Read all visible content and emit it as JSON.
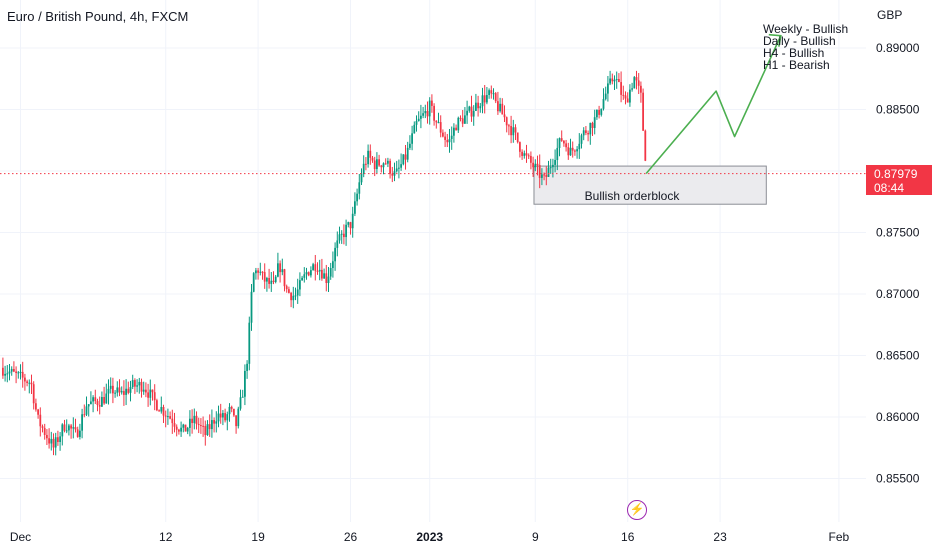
{
  "chart_data": {
    "type": "candlestick",
    "title": "Euro / British Pound, 4h, FXCM",
    "currency": "GBP",
    "ylim": [
      0.8525,
      0.8925
    ],
    "y_ticks": [
      "0.89000",
      "0.88500",
      "0.88000",
      "0.87500",
      "0.87000",
      "0.86500",
      "0.86000",
      "0.85500"
    ],
    "y_tick_values": [
      0.89,
      0.885,
      0.88,
      0.875,
      0.87,
      0.865,
      0.86,
      0.855
    ],
    "x_ticks": [
      {
        "label": "Dec",
        "day": 0
      },
      {
        "label": "12",
        "day": 11
      },
      {
        "label": "19",
        "day": 18
      },
      {
        "label": "26",
        "day": 25
      },
      {
        "label": "2023",
        "day": 31
      },
      {
        "label": "9",
        "day": 39
      },
      {
        "label": "16",
        "day": 46
      },
      {
        "label": "23",
        "day": 53
      },
      {
        "label": "Feb",
        "day": 62
      }
    ],
    "grid": true,
    "last_price": "0.87979",
    "countdown": "08:44",
    "orderblock": {
      "label": "Bullish orderblock",
      "top": 0.8804,
      "bottom": 0.8773,
      "day_start": 38.9,
      "day_end": 56.5
    },
    "projection": {
      "points": [
        [
          47.4,
          0.8798
        ],
        [
          52.7,
          0.8865
        ],
        [
          54.1,
          0.8828
        ],
        [
          57.6,
          0.891
        ]
      ],
      "color": "#4caf50"
    },
    "bias_notes": [
      "Weekly - Bullish",
      "Daily - Bullish",
      "H4 - Bullish",
      "H1 - Bearish"
    ],
    "up_color": "#089981",
    "down_color": "#f23645",
    "anchors": [
      [
        -1.5,
        0.864
      ],
      [
        0,
        0.8632
      ],
      [
        0.8,
        0.8628
      ],
      [
        1.3,
        0.8598
      ],
      [
        2.5,
        0.8575
      ],
      [
        3.4,
        0.8595
      ],
      [
        4.2,
        0.8585
      ],
      [
        5.0,
        0.861
      ],
      [
        6.2,
        0.8614
      ],
      [
        7.0,
        0.8622
      ],
      [
        7.6,
        0.8618
      ],
      [
        8.4,
        0.8625
      ],
      [
        9.3,
        0.8626
      ],
      [
        10.2,
        0.8612
      ],
      [
        11.5,
        0.8598
      ],
      [
        12.3,
        0.8588
      ],
      [
        13.2,
        0.8598
      ],
      [
        14.0,
        0.8586
      ],
      [
        14.9,
        0.8602
      ],
      [
        15.5,
        0.8598
      ],
      [
        15.9,
        0.8606
      ],
      [
        16.3,
        0.8592
      ],
      [
        16.8,
        0.8618
      ],
      [
        17.2,
        0.865
      ],
      [
        17.6,
        0.8715
      ],
      [
        18.0,
        0.872
      ],
      [
        18.4,
        0.8712
      ],
      [
        19.2,
        0.8705
      ],
      [
        19.6,
        0.8725
      ],
      [
        20.2,
        0.8702
      ],
      [
        20.8,
        0.8698
      ],
      [
        21.7,
        0.8718
      ],
      [
        22.4,
        0.8725
      ],
      [
        23.2,
        0.8712
      ],
      [
        23.9,
        0.8738
      ],
      [
        24.6,
        0.8752
      ],
      [
        25.1,
        0.8758
      ],
      [
        25.8,
        0.8798
      ],
      [
        26.3,
        0.8812
      ],
      [
        26.9,
        0.8805
      ],
      [
        27.6,
        0.8808
      ],
      [
        28.4,
        0.8796
      ],
      [
        29.2,
        0.8812
      ],
      [
        30.0,
        0.8838
      ],
      [
        31.0,
        0.8852
      ],
      [
        31.6,
        0.8838
      ],
      [
        32.4,
        0.8822
      ],
      [
        33.0,
        0.8838
      ],
      [
        33.8,
        0.8845
      ],
      [
        34.9,
        0.8858
      ],
      [
        35.6,
        0.8862
      ],
      [
        36.4,
        0.8848
      ],
      [
        37.3,
        0.8832
      ],
      [
        38.2,
        0.8812
      ],
      [
        39.0,
        0.8802
      ],
      [
        39.7,
        0.8792
      ],
      [
        40.4,
        0.8812
      ],
      [
        41.0,
        0.8826
      ],
      [
        41.7,
        0.8815
      ],
      [
        42.6,
        0.883
      ],
      [
        43.6,
        0.8843
      ],
      [
        44.3,
        0.8862
      ],
      [
        45.0,
        0.8878
      ],
      [
        45.8,
        0.8855
      ],
      [
        46.5,
        0.8876
      ],
      [
        47.0,
        0.886
      ],
      [
        47.4,
        0.8798
      ]
    ]
  }
}
